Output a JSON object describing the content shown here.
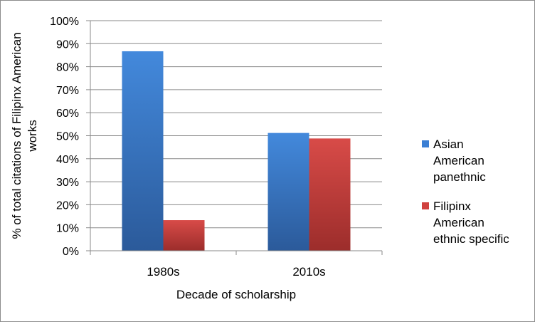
{
  "chart_data": {
    "type": "bar",
    "xlabel": "Decade of scholarship",
    "ylabel": "% of total citations of Filipinx American works",
    "categories": [
      "1980s",
      "2010s"
    ],
    "series": [
      {
        "name": "Asian American panethnic",
        "values": [
          86.7,
          51.2
        ]
      },
      {
        "name": "Filipinx American ethnic specific",
        "values": [
          13.3,
          48.8
        ]
      }
    ],
    "ylim": [
      0,
      100
    ],
    "yticks": [
      "0%",
      "10%",
      "20%",
      "30%",
      "40%",
      "50%",
      "60%",
      "70%",
      "80%",
      "90%",
      "100%"
    ],
    "grid": true,
    "legend_position": "right",
    "colors": {
      "series_1": "#3f7ed0",
      "series_1_dark": "#2b5a9a",
      "series_2": "#d24744",
      "series_2_dark": "#9c2d2b",
      "gridline": "#8a8a8a",
      "axis": "#8a8a8a"
    }
  }
}
